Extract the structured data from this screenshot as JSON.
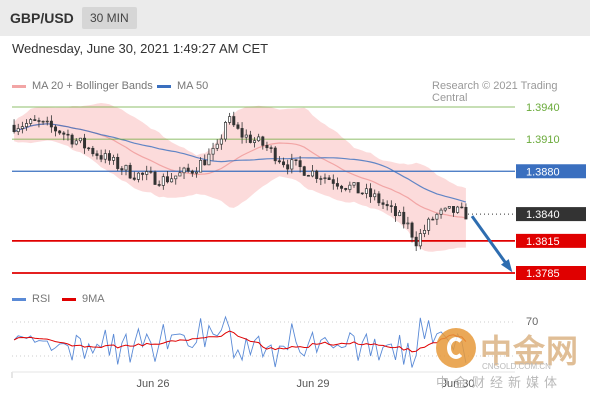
{
  "header": {
    "pair": "GBP/USD",
    "timeframe": "30 MIN"
  },
  "datetime": "Wednesday, June 30, 2021 1:49:27 AM CET",
  "legend": {
    "bollinger": "MA 20 + Bollinger Bands",
    "ma50": "MA 50",
    "credit": "Research © 2021 Trading Central"
  },
  "rsi_legend": {
    "rsi": "RSI",
    "ma9": "9MA"
  },
  "watermark": {
    "brand": "中金网",
    "url": "CNGOLD.COM.CN",
    "subtitle": "中金财经新媒体"
  },
  "colors": {
    "bollinger": "#f2a5a5",
    "band_fill": "#fbd5d5",
    "ma50": "#3a6fbf",
    "resistance": "#6aaa3a",
    "pivot": "#3a6fbf",
    "support": "#e00000",
    "current": "#333333",
    "arrow": "#2e6db0",
    "candle": "#333333",
    "rsi": "#5a8ad6",
    "ma9": "#e00000"
  },
  "chart_data": {
    "type": "candlestick",
    "x_ticks": [
      "Jun 26",
      "Jun 29",
      "Jun 30"
    ],
    "y_range": [
      1.377,
      1.396
    ],
    "levels": [
      {
        "label": "1.3940",
        "value": 1.394,
        "kind": "resistance"
      },
      {
        "label": "1.3910",
        "value": 1.391,
        "kind": "resistance"
      },
      {
        "label": "1.3880",
        "value": 1.388,
        "kind": "pivot"
      },
      {
        "label": "1.3840",
        "value": 1.384,
        "kind": "current"
      },
      {
        "label": "1.3815",
        "value": 1.3815,
        "kind": "support"
      },
      {
        "label": "1.3785",
        "value": 1.3785,
        "kind": "support"
      }
    ],
    "rsi_level": "70",
    "forecast_arrow": {
      "from": 1.384,
      "to": 1.3785
    }
  }
}
